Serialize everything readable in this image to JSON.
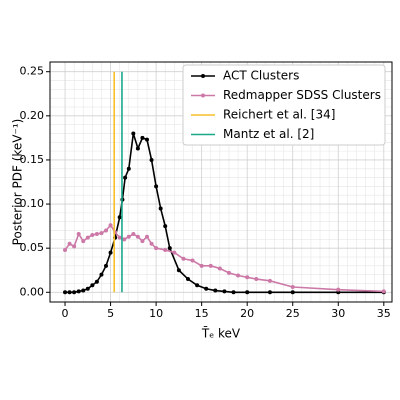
{
  "chart_data": {
    "type": "line",
    "xlabel": "T̄ₑ keV",
    "ylabel": "Posterior PDF (keV⁻¹)",
    "xlim": [
      -1.65,
      35.9
    ],
    "ylim": [
      -0.011,
      0.261
    ],
    "xticks": [
      0,
      5,
      10,
      15,
      20,
      25,
      30,
      35
    ],
    "yticks": [
      {
        "value": 0,
        "label": "0.00"
      },
      {
        "value": 0.05,
        "label": "0.05"
      },
      {
        "value": 0.1,
        "label": "0.10"
      },
      {
        "value": 0.15,
        "label": "0.15"
      },
      {
        "value": 0.2,
        "label": "0.20"
      },
      {
        "value": 0.25,
        "label": "0.25"
      }
    ],
    "grid": true,
    "minor_grid": true,
    "legend": "upper right",
    "series": [
      {
        "name": "ACT Clusters",
        "color": "#000000",
        "markers": true,
        "x": [
          0,
          0.5,
          1,
          1.5,
          2,
          2.5,
          3,
          3.5,
          4,
          4.5,
          5,
          5.5,
          6,
          6.3,
          6.6,
          7,
          7.5,
          8,
          8.5,
          9,
          9.5,
          10,
          10.5,
          11,
          11.5,
          12.5,
          13.5,
          14.5,
          15.5,
          16.5,
          17.5,
          18.5,
          20,
          22.5,
          25,
          30,
          35
        ],
        "values": [
          0,
          0,
          0,
          0.001,
          0.002,
          0.004,
          0.008,
          0.012,
          0.02,
          0.03,
          0.045,
          0.062,
          0.085,
          0.105,
          0.13,
          0.14,
          0.18,
          0.163,
          0.175,
          0.173,
          0.15,
          0.12,
          0.095,
          0.075,
          0.05,
          0.025,
          0.015,
          0.008,
          0.004,
          0.002,
          0.001,
          0,
          0,
          0,
          0,
          0,
          0
        ]
      },
      {
        "name": "Redmapper SDSS Clusters",
        "color": "#cc79a7",
        "markers": true,
        "x": [
          0,
          0.5,
          1,
          1.5,
          2,
          2.5,
          3,
          3.5,
          4,
          4.5,
          5,
          5.5,
          6,
          6.5,
          7,
          7.5,
          8,
          8.5,
          9,
          9.5,
          10,
          11,
          12,
          13,
          14,
          15,
          16,
          17,
          18,
          19,
          20,
          21,
          22.5,
          25,
          30,
          35
        ],
        "values": [
          0.048,
          0.055,
          0.052,
          0.066,
          0.058,
          0.062,
          0.065,
          0.066,
          0.067,
          0.07,
          0.076,
          0.068,
          0.062,
          0.06,
          0.063,
          0.066,
          0.063,
          0.058,
          0.063,
          0.055,
          0.05,
          0.048,
          0.045,
          0.038,
          0.036,
          0.03,
          0.03,
          0.027,
          0.022,
          0.019,
          0.017,
          0.015,
          0.013,
          0.006,
          0.003,
          0.001
        ]
      },
      {
        "name": "Reichert et al. [34]",
        "color": "#f5c02a",
        "markers": false,
        "x": [
          5.4,
          5.4
        ],
        "values": [
          0,
          0.25
        ]
      },
      {
        "name": "Mantz et al. [2]",
        "color": "#1aa88a",
        "markers": false,
        "x": [
          6.25,
          6.25
        ],
        "values": [
          0,
          0.25
        ]
      }
    ]
  }
}
